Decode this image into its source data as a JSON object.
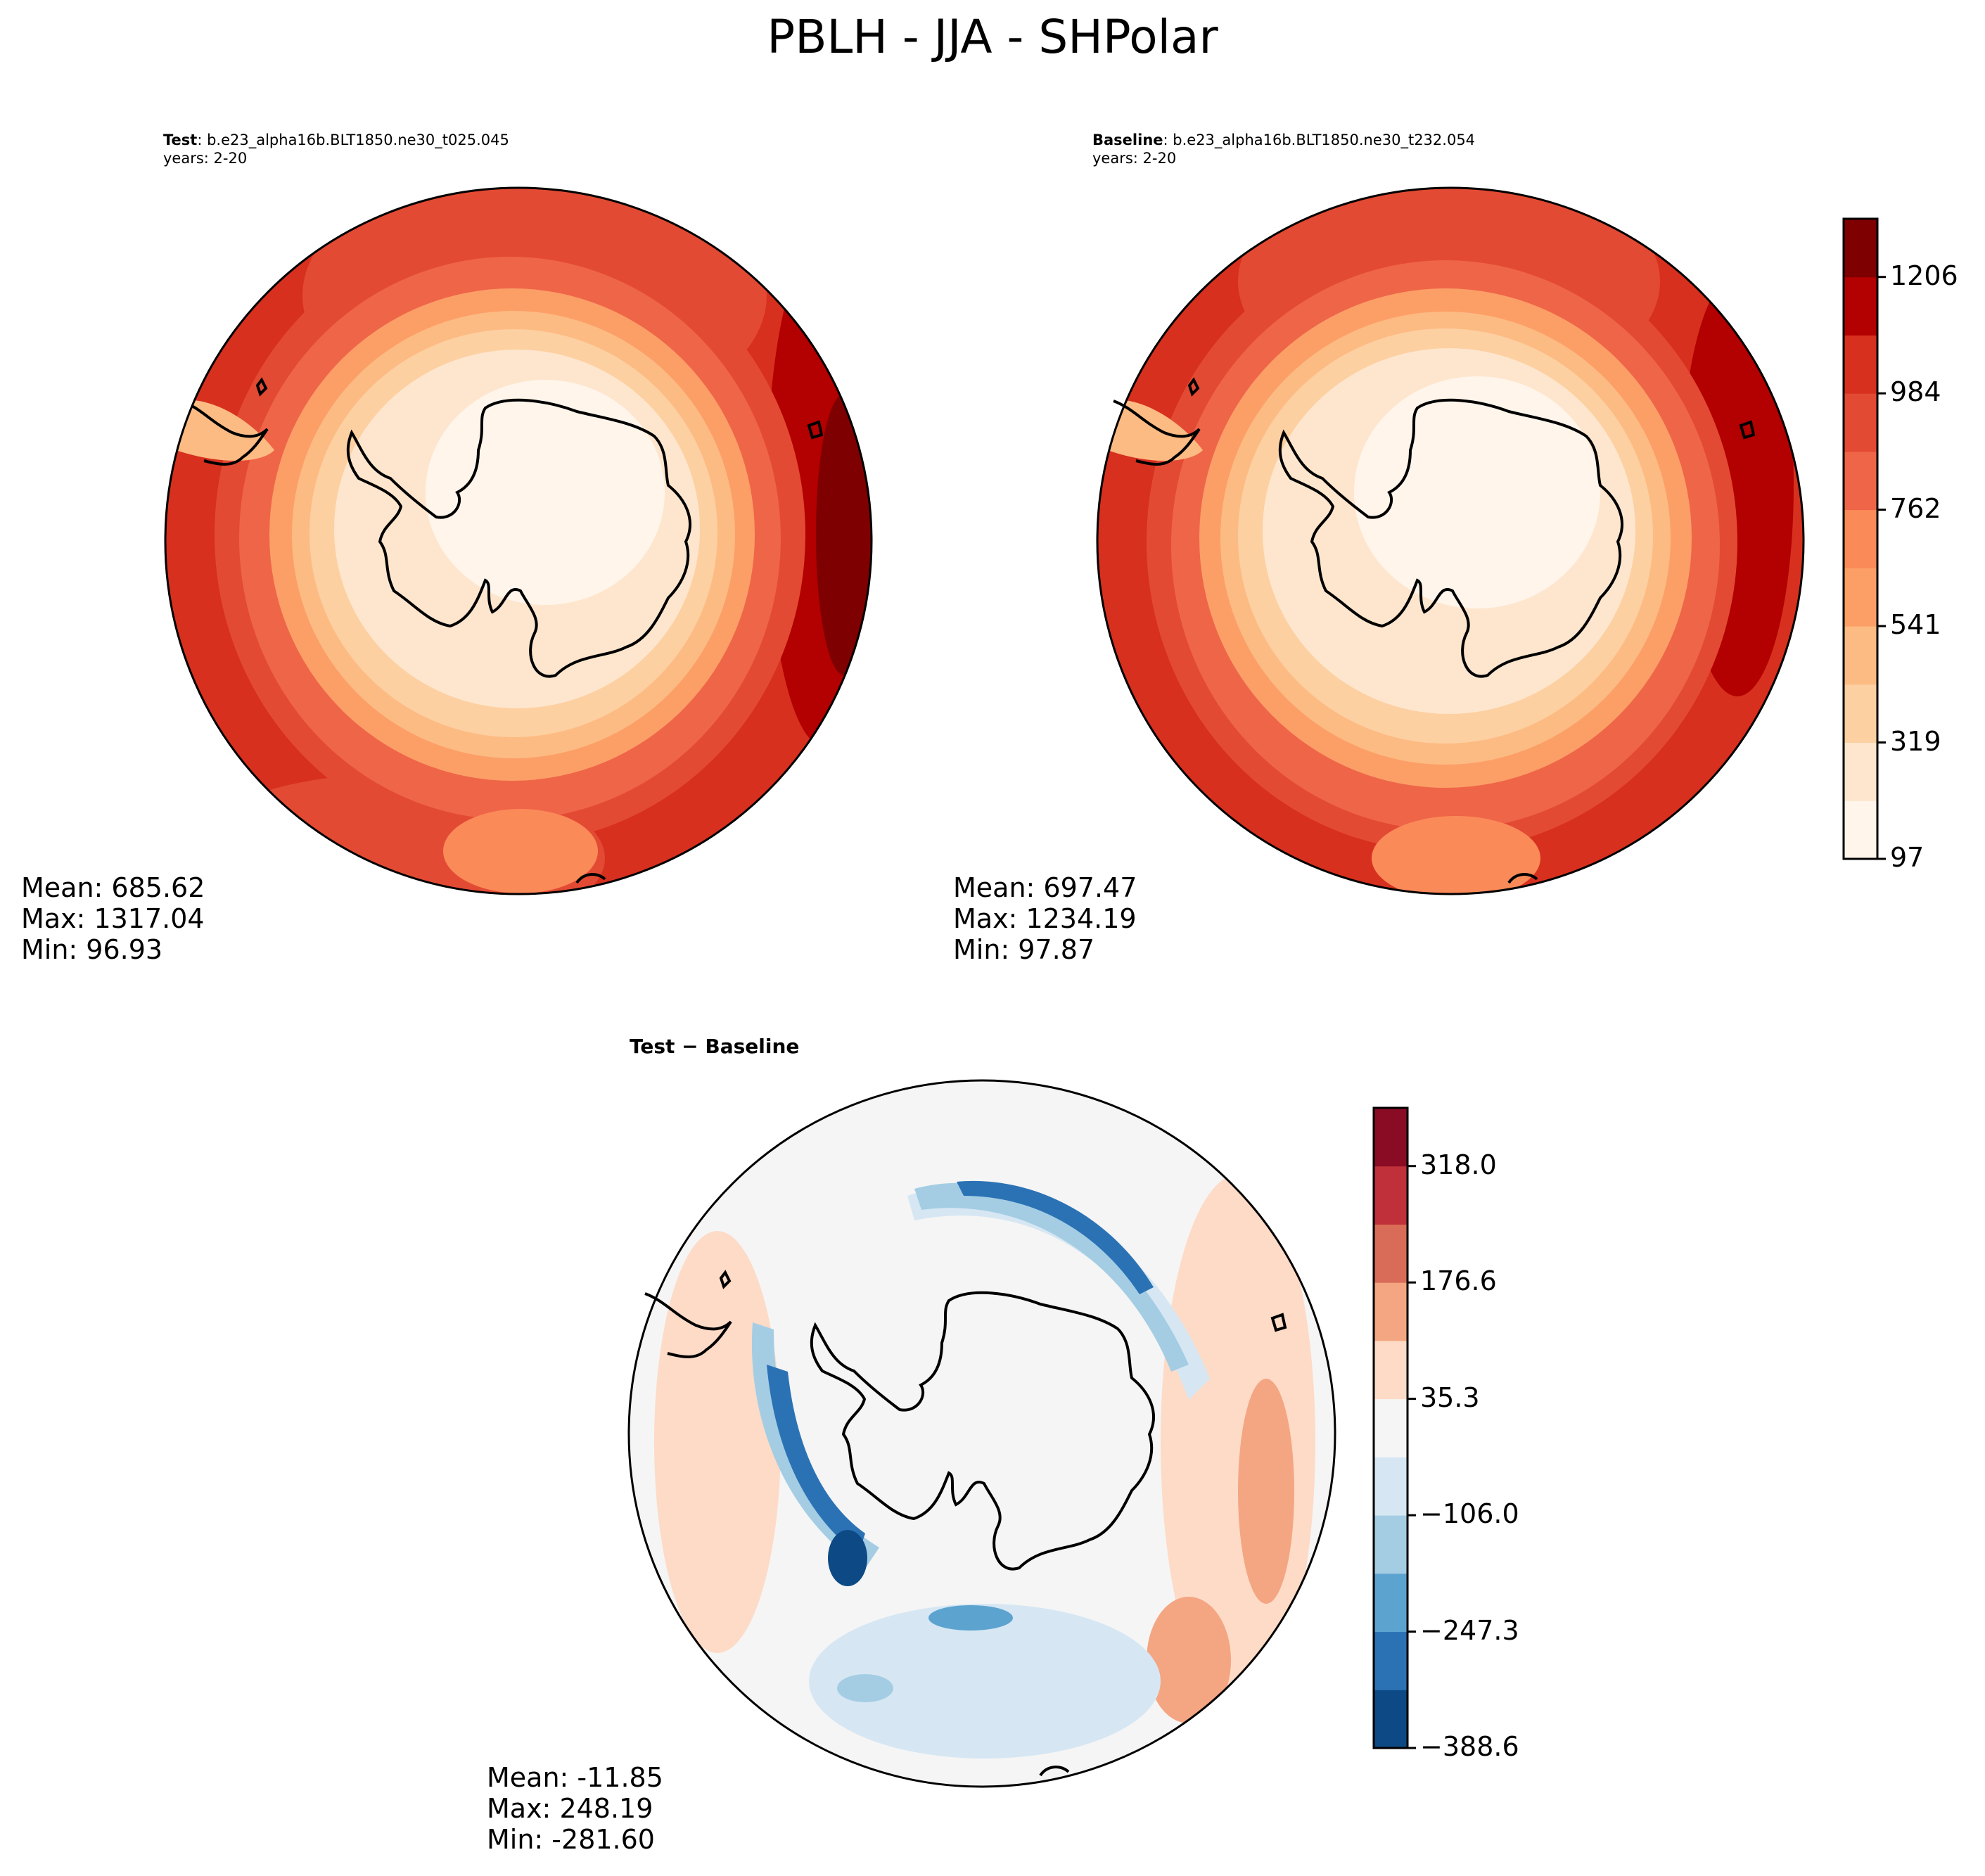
{
  "title": "PBLH - JJA - SHPolar",
  "panels": [
    {
      "label": "Test",
      "case": ": b.e23_alpha16b.BLT1850.ne30_t025.045",
      "years": "years: 2-20",
      "stats": {
        "mean": "Mean: 685.62",
        "max": "Max: 1317.04",
        "min": "Min: 96.93"
      }
    },
    {
      "label": "Baseline",
      "case": ": b.e23_alpha16b.BLT1850.ne30_t232.054",
      "years": "years: 2-20",
      "stats": {
        "mean": "Mean: 697.47",
        "max": "Max: 1234.19",
        "min": "Min: 97.87"
      }
    },
    {
      "label": "Test − Baseline",
      "stats": {
        "mean": "Mean: -11.85",
        "max": "Max: 248.19",
        "min": "Min: -281.60"
      }
    }
  ],
  "colorbar_top": {
    "colors": [
      "#fff5eb",
      "#fee6ce",
      "#fdd0a2",
      "#fdbb84",
      "#fc9f67",
      "#fb8a59",
      "#ef6548",
      "#e34a33",
      "#d7301f",
      "#b30000",
      "#7f0000"
    ],
    "tick_labels": [
      "97",
      "319",
      "541",
      "762",
      "984",
      "1206"
    ]
  },
  "colorbar_diff": {
    "colors": [
      "#0d4a85",
      "#2b72b5",
      "#5ca3cf",
      "#a4cde4",
      "#d6e7f3",
      "#f5f5f5",
      "#fddbc7",
      "#f4a582",
      "#d86c58",
      "#c0303a",
      "#8a0c24"
    ],
    "tick_labels": [
      "−388.6",
      "−247.3",
      "−106.0",
      "35.3",
      "176.6",
      "318.0"
    ]
  }
}
